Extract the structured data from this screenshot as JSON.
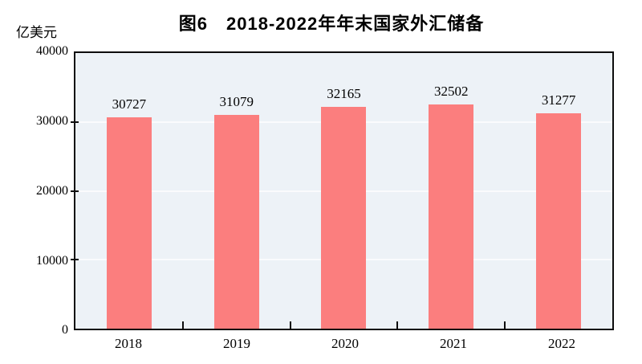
{
  "chart_data": {
    "type": "bar",
    "title": "图6　2018-2022年年末国家外汇储备",
    "ylabel": "亿美元",
    "xlabel": "",
    "categories": [
      "2018",
      "2019",
      "2020",
      "2021",
      "2022"
    ],
    "values": [
      30727,
      31079,
      32165,
      32502,
      31277
    ],
    "value_labels": [
      "30727",
      "31079",
      "32165",
      "32502",
      "31277"
    ],
    "ylim": [
      0,
      40000
    ],
    "ytick_interval": 10000,
    "ytick_labels": [
      "40000",
      "30000",
      "20000",
      "10000",
      "0"
    ],
    "grid": "horizontal",
    "legend_position": "none",
    "colors": {
      "bar": "#FB7E7E",
      "plot_background": "#EDF2F7",
      "gridline": "#FAFBFD",
      "axis": "#0d0d0d",
      "text": "#000000"
    }
  }
}
